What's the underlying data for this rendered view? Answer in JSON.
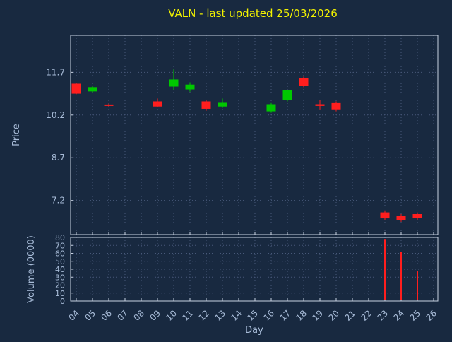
{
  "title": "VALN - last updated 25/03/2026",
  "colors": {
    "background": "#182940",
    "title": "#f2f200",
    "axis_text": "#a8bcd8",
    "border": "#c9d3e2",
    "grid": "#48597a",
    "up": "#00c800",
    "down": "#ff1e1e",
    "volume_bar": "#ff1e1e"
  },
  "chart_data": {
    "type": "candlestick_with_volume",
    "title": "VALN - last updated 25/03/2026",
    "xlabel": "Day",
    "grid": true,
    "price_axis": {
      "label": "Price",
      "ticks": [
        11.7,
        10.2,
        8.7,
        7.2
      ],
      "range": [
        6,
        13
      ]
    },
    "volume_axis": {
      "label": "Volume (0000)",
      "ticks": [
        80,
        70,
        60,
        50,
        40,
        30,
        20,
        10,
        0
      ],
      "range": [
        0,
        80
      ]
    },
    "days": [
      "04",
      "05",
      "06",
      "07",
      "08",
      "09",
      "10",
      "11",
      "12",
      "13",
      "14",
      "15",
      "16",
      "17",
      "18",
      "19",
      "20",
      "21",
      "22",
      "23",
      "24",
      "25",
      "26"
    ],
    "candles": [
      {
        "day": "04",
        "open": 11.3,
        "high": 11.32,
        "low": 10.93,
        "close": 10.95,
        "color": "down"
      },
      {
        "day": "05",
        "open": 11.03,
        "high": 11.22,
        "low": 11.0,
        "close": 11.18,
        "color": "up"
      },
      {
        "day": "06",
        "open": 10.57,
        "high": 10.6,
        "low": 10.5,
        "close": 10.53,
        "color": "down"
      },
      {
        "day": "09",
        "open": 10.68,
        "high": 10.78,
        "low": 10.48,
        "close": 10.5,
        "color": "down"
      },
      {
        "day": "10",
        "open": 11.2,
        "high": 11.8,
        "low": 11.08,
        "close": 11.45,
        "color": "up"
      },
      {
        "day": "11",
        "open": 11.1,
        "high": 11.35,
        "low": 11.02,
        "close": 11.27,
        "color": "up"
      },
      {
        "day": "12",
        "open": 10.68,
        "high": 10.72,
        "low": 10.35,
        "close": 10.42,
        "color": "down"
      },
      {
        "day": "13",
        "open": 10.5,
        "high": 10.78,
        "low": 10.45,
        "close": 10.63,
        "color": "up"
      },
      {
        "day": "16",
        "open": 10.33,
        "high": 10.62,
        "low": 10.28,
        "close": 10.58,
        "color": "up"
      },
      {
        "day": "17",
        "open": 10.73,
        "high": 11.08,
        "low": 10.68,
        "close": 11.08,
        "color": "up"
      },
      {
        "day": "18",
        "open": 11.5,
        "high": 11.55,
        "low": 11.18,
        "close": 11.22,
        "color": "down"
      },
      {
        "day": "19",
        "open": 10.58,
        "high": 10.72,
        "low": 10.4,
        "close": 10.52,
        "color": "down"
      },
      {
        "day": "20",
        "open": 10.62,
        "high": 10.68,
        "low": 10.33,
        "close": 10.4,
        "color": "down"
      },
      {
        "day": "23",
        "open": 6.78,
        "high": 6.85,
        "low": 6.5,
        "close": 6.57,
        "color": "down"
      },
      {
        "day": "24",
        "open": 6.67,
        "high": 6.72,
        "low": 6.45,
        "close": 6.5,
        "color": "down"
      },
      {
        "day": "25",
        "open": 6.72,
        "high": 6.78,
        "low": 6.52,
        "close": 6.58,
        "color": "down"
      }
    ],
    "volumes": [
      {
        "day": "23",
        "value": 78
      },
      {
        "day": "24",
        "value": 62
      },
      {
        "day": "25",
        "value": 38
      }
    ]
  }
}
